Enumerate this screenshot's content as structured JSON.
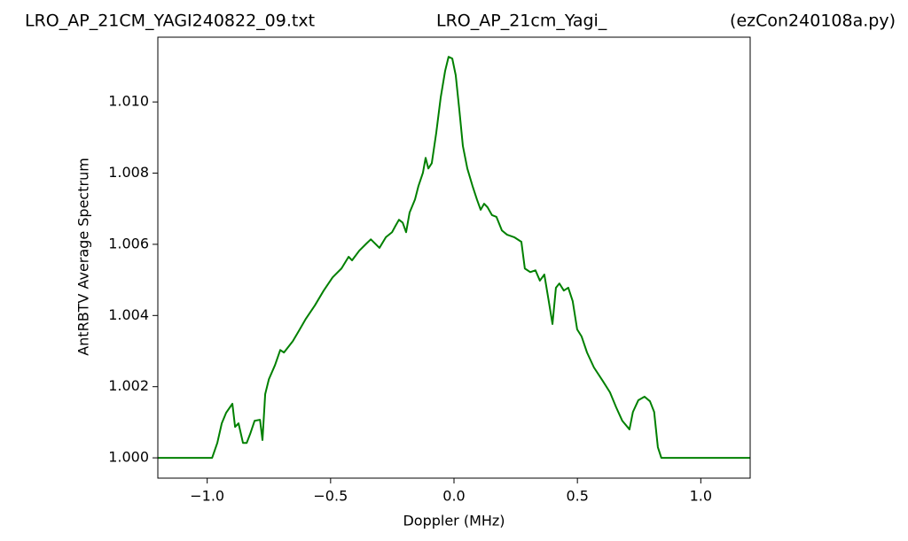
{
  "chart_data": {
    "type": "line",
    "title_left": "LRO_AP_21CM_YAGI240822_09.txt",
    "title": "LRO_AP_21cm_Yagi_",
    "title_right": "(ezCon240108a.py)",
    "xlabel": "Doppler (MHz)",
    "ylabel": "AntRBTV Average Spectrum",
    "color": "#008000",
    "xlim": [
      -1.2,
      1.2
    ],
    "ylim": [
      0.99943,
      1.01182
    ],
    "xticks": [
      {
        "value": -1.0,
        "label": "−1.0"
      },
      {
        "value": -0.5,
        "label": "−0.5"
      },
      {
        "value": 0.0,
        "label": "0.0"
      },
      {
        "value": 0.5,
        "label": "0.5"
      },
      {
        "value": 1.0,
        "label": "1.0"
      }
    ],
    "yticks": [
      {
        "value": 1.0,
        "label": "1.000"
      },
      {
        "value": 1.002,
        "label": "1.002"
      },
      {
        "value": 1.004,
        "label": "1.004"
      },
      {
        "value": 1.006,
        "label": "1.006"
      },
      {
        "value": 1.008,
        "label": "1.008"
      },
      {
        "value": 1.01,
        "label": "1.010"
      }
    ],
    "x": [
      -1.2,
      -0.98,
      -0.959,
      -0.941,
      -0.923,
      -0.898,
      -0.887,
      -0.873,
      -0.855,
      -0.84,
      -0.826,
      -0.808,
      -0.786,
      -0.776,
      -0.765,
      -0.75,
      -0.725,
      -0.704,
      -0.689,
      -0.653,
      -0.625,
      -0.6,
      -0.564,
      -0.528,
      -0.492,
      -0.456,
      -0.427,
      -0.413,
      -0.384,
      -0.355,
      -0.337,
      -0.302,
      -0.276,
      -0.251,
      -0.237,
      -0.223,
      -0.208,
      -0.194,
      -0.18,
      -0.158,
      -0.144,
      -0.126,
      -0.115,
      -0.104,
      -0.09,
      -0.072,
      -0.054,
      -0.036,
      -0.022,
      -0.007,
      0.007,
      0.022,
      0.036,
      0.054,
      0.075,
      0.093,
      0.108,
      0.122,
      0.136,
      0.154,
      0.172,
      0.194,
      0.215,
      0.244,
      0.273,
      0.287,
      0.309,
      0.33,
      0.348,
      0.366,
      0.384,
      0.399,
      0.413,
      0.427,
      0.445,
      0.463,
      0.481,
      0.499,
      0.517,
      0.539,
      0.567,
      0.603,
      0.632,
      0.657,
      0.682,
      0.711,
      0.725,
      0.747,
      0.772,
      0.794,
      0.811,
      0.826,
      0.84,
      1.2
    ],
    "values": [
      1.0,
      1.0,
      1.00042,
      1.00097,
      1.00127,
      1.00152,
      1.00087,
      1.00097,
      1.00042,
      1.00042,
      1.00067,
      1.00104,
      1.00107,
      1.0005,
      1.00179,
      1.00221,
      1.00261,
      1.00303,
      1.00296,
      1.00328,
      1.00361,
      1.00391,
      1.00428,
      1.0047,
      1.00507,
      1.00532,
      1.00565,
      1.00555,
      1.00582,
      1.00602,
      1.00614,
      1.0059,
      1.0062,
      1.00634,
      1.00652,
      1.00669,
      1.00661,
      1.00634,
      1.00689,
      1.00726,
      1.00764,
      1.00801,
      1.00843,
      1.00813,
      1.00828,
      1.00913,
      1.01012,
      1.01087,
      1.01127,
      1.01122,
      1.01075,
      1.00975,
      1.00876,
      1.00813,
      1.00764,
      1.00726,
      1.00697,
      1.00714,
      1.00704,
      1.00682,
      1.00677,
      1.00639,
      1.00627,
      1.0062,
      1.00607,
      1.00532,
      1.00522,
      1.00527,
      1.00498,
      1.00515,
      1.0044,
      1.00376,
      1.00478,
      1.0049,
      1.0047,
      1.00478,
      1.0044,
      1.00361,
      1.00341,
      1.00296,
      1.00254,
      1.00216,
      1.00184,
      1.00142,
      1.00104,
      1.0008,
      1.00129,
      1.00162,
      1.00172,
      1.00159,
      1.00129,
      1.0003,
      1.0,
      1.0
    ]
  }
}
